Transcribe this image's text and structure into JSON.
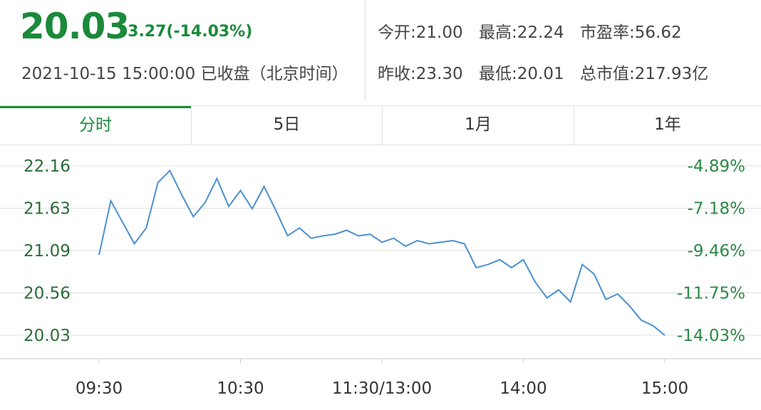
{
  "quote": {
    "price": "20.03",
    "change": "-3.27(-14.03%)",
    "datetime": "2021-10-15 15:00:00",
    "status": "已收盘",
    "timezone": "（北京时间）",
    "open_label": "今开:",
    "open": "21.00",
    "high_label": "最高:",
    "high": "22.24",
    "pe_label": "市盈率:",
    "pe": "56.62",
    "prev_close_label": "昨收:",
    "prev_close": "23.30",
    "low_label": "最低:",
    "low": "20.01",
    "market_cap_label": "总市值:",
    "market_cap": "217.93亿"
  },
  "tabs": [
    {
      "label": "分时",
      "active": true
    },
    {
      "label": "5日",
      "active": false
    },
    {
      "label": "1月",
      "active": false
    },
    {
      "label": "1年",
      "active": false
    }
  ],
  "colors": {
    "down": "#1a8a3a",
    "line": "#4a90d0",
    "grid": "#e0e0e0"
  },
  "chart_data": {
    "type": "line",
    "ylim": [
      20.03,
      22.16
    ],
    "y_ticks": [
      "22.16",
      "21.63",
      "21.09",
      "20.56",
      "20.03"
    ],
    "y_ticks_right": [
      "-4.89%",
      "-7.18%",
      "-9.46%",
      "-11.75%",
      "-14.03%"
    ],
    "x_ticks": [
      "09:30",
      "10:30",
      "11:30/13:00",
      "14:00",
      "15:00"
    ],
    "x": [
      "09:30",
      "09:35",
      "09:40",
      "09:45",
      "09:50",
      "09:55",
      "10:00",
      "10:05",
      "10:10",
      "10:15",
      "10:20",
      "10:25",
      "10:30",
      "10:35",
      "10:40",
      "10:45",
      "10:50",
      "10:55",
      "11:00",
      "11:05",
      "11:10",
      "11:15",
      "11:20",
      "11:25",
      "11:30/13:00",
      "13:05",
      "13:10",
      "13:15",
      "13:20",
      "13:25",
      "13:30",
      "13:35",
      "13:40",
      "13:45",
      "13:50",
      "13:55",
      "14:00",
      "14:05",
      "14:10",
      "14:15",
      "14:20",
      "14:25",
      "14:30",
      "14:35",
      "14:40",
      "14:45",
      "14:50",
      "14:55",
      "15:00"
    ],
    "series": [
      {
        "values": [
          21.04,
          21.72,
          21.45,
          21.18,
          21.38,
          21.95,
          22.1,
          21.8,
          21.52,
          21.7,
          22.0,
          21.65,
          21.85,
          21.62,
          21.9,
          21.6,
          21.28,
          21.38,
          21.25,
          21.28,
          21.3,
          21.35,
          21.28,
          21.3,
          21.2,
          21.25,
          21.15,
          21.22,
          21.18,
          21.2,
          21.22,
          21.18,
          20.88,
          20.92,
          20.98,
          20.88,
          20.98,
          20.7,
          20.5,
          20.6,
          20.45,
          20.92,
          20.8,
          20.48,
          20.55,
          20.4,
          20.22,
          20.15,
          20.03
        ]
      }
    ]
  }
}
